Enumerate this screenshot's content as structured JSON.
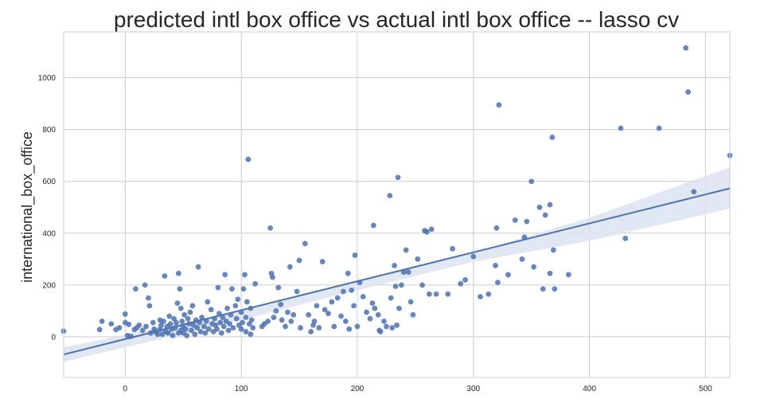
{
  "chart_data": {
    "type": "scatter",
    "title": "predicted intl box office vs actual intl box office -- lasso cv",
    "xlabel": "",
    "ylabel": "international_box_office",
    "xlim": [
      -53,
      521
    ],
    "ylim": [
      -157,
      1177
    ],
    "xticks": [
      0,
      100,
      200,
      300,
      400,
      500
    ],
    "yticks": [
      0,
      200,
      400,
      600,
      800,
      1000
    ],
    "grid": true,
    "point_color": "#4c72b0",
    "regression": {
      "line": [
        [
          -53,
          -68
        ],
        [
          521,
          573
        ]
      ],
      "ci_upper": [
        [
          -53,
          -40
        ],
        [
          100,
          100
        ],
        [
          200,
          210
        ],
        [
          300,
          325
        ],
        [
          400,
          460
        ],
        [
          521,
          655
        ]
      ],
      "ci_lower": [
        [
          -53,
          -96
        ],
        [
          100,
          65
        ],
        [
          200,
          180
        ],
        [
          300,
          290
        ],
        [
          400,
          370
        ],
        [
          521,
          495
        ]
      ],
      "line_color": "#4c72b0",
      "band_color": "#dce3f1"
    },
    "points": [
      [
        -53,
        22
      ],
      [
        -22,
        28
      ],
      [
        -20,
        60
      ],
      [
        -12,
        50
      ],
      [
        -8,
        28
      ],
      [
        -5,
        35
      ],
      [
        0,
        88
      ],
      [
        0,
        55
      ],
      [
        3,
        48
      ],
      [
        2,
        5
      ],
      [
        5,
        2
      ],
      [
        8,
        28
      ],
      [
        9,
        185
      ],
      [
        10,
        35
      ],
      [
        12,
        45
      ],
      [
        15,
        25
      ],
      [
        17,
        200
      ],
      [
        18,
        40
      ],
      [
        20,
        150
      ],
      [
        21,
        120
      ],
      [
        22,
        15
      ],
      [
        24,
        55
      ],
      [
        25,
        30
      ],
      [
        26,
        20
      ],
      [
        28,
        10
      ],
      [
        30,
        65
      ],
      [
        30,
        30
      ],
      [
        31,
        45
      ],
      [
        32,
        10
      ],
      [
        33,
        60
      ],
      [
        34,
        235
      ],
      [
        35,
        20
      ],
      [
        36,
        40
      ],
      [
        37,
        15
      ],
      [
        38,
        80
      ],
      [
        39,
        50
      ],
      [
        40,
        30
      ],
      [
        41,
        5
      ],
      [
        42,
        70
      ],
      [
        43,
        35
      ],
      [
        44,
        55
      ],
      [
        45,
        130
      ],
      [
        46,
        15
      ],
      [
        46,
        245
      ],
      [
        47,
        185
      ],
      [
        48,
        25
      ],
      [
        48,
        110
      ],
      [
        49,
        60
      ],
      [
        50,
        40
      ],
      [
        50,
        15
      ],
      [
        51,
        85
      ],
      [
        52,
        30
      ],
      [
        53,
        5
      ],
      [
        54,
        70
      ],
      [
        55,
        50
      ],
      [
        56,
        95
      ],
      [
        57,
        25
      ],
      [
        58,
        120
      ],
      [
        59,
        45
      ],
      [
        60,
        10
      ],
      [
        61,
        65
      ],
      [
        62,
        35
      ],
      [
        63,
        270
      ],
      [
        64,
        55
      ],
      [
        65,
        20
      ],
      [
        66,
        75
      ],
      [
        68,
        40
      ],
      [
        69,
        15
      ],
      [
        70,
        60
      ],
      [
        71,
        135
      ],
      [
        72,
        30
      ],
      [
        74,
        105
      ],
      [
        75,
        50
      ],
      [
        76,
        20
      ],
      [
        77,
        70
      ],
      [
        78,
        45
      ],
      [
        79,
        30
      ],
      [
        80,
        190
      ],
      [
        81,
        90
      ],
      [
        82,
        55
      ],
      [
        83,
        15
      ],
      [
        84,
        75
      ],
      [
        85,
        40
      ],
      [
        86,
        240
      ],
      [
        87,
        60
      ],
      [
        88,
        110
      ],
      [
        89,
        25
      ],
      [
        90,
        50
      ],
      [
        91,
        85
      ],
      [
        92,
        185
      ],
      [
        93,
        35
      ],
      [
        95,
        120
      ],
      [
        96,
        70
      ],
      [
        97,
        145
      ],
      [
        98,
        45
      ],
      [
        100,
        95
      ],
      [
        100,
        30
      ],
      [
        101,
        55
      ],
      [
        102,
        185
      ],
      [
        103,
        240
      ],
      [
        104,
        75
      ],
      [
        104,
        20
      ],
      [
        105,
        135
      ],
      [
        106,
        685
      ],
      [
        107,
        50
      ],
      [
        108,
        110
      ],
      [
        108,
        10
      ],
      [
        109,
        65
      ],
      [
        110,
        35
      ],
      [
        112,
        205
      ],
      [
        118,
        40
      ],
      [
        120,
        50
      ],
      [
        123,
        60
      ],
      [
        125,
        420
      ],
      [
        126,
        245
      ],
      [
        127,
        230
      ],
      [
        128,
        75
      ],
      [
        130,
        100
      ],
      [
        132,
        190
      ],
      [
        134,
        125
      ],
      [
        135,
        65
      ],
      [
        138,
        40
      ],
      [
        140,
        95
      ],
      [
        142,
        270
      ],
      [
        143,
        60
      ],
      [
        145,
        85
      ],
      [
        148,
        175
      ],
      [
        150,
        295
      ],
      [
        151,
        35
      ],
      [
        155,
        360
      ],
      [
        158,
        85
      ],
      [
        160,
        20
      ],
      [
        162,
        45
      ],
      [
        163,
        60
      ],
      [
        165,
        120
      ],
      [
        167,
        35
      ],
      [
        170,
        290
      ],
      [
        172,
        105
      ],
      [
        175,
        90
      ],
      [
        178,
        135
      ],
      [
        180,
        40
      ],
      [
        183,
        150
      ],
      [
        186,
        80
      ],
      [
        188,
        175
      ],
      [
        190,
        60
      ],
      [
        192,
        245
      ],
      [
        193,
        30
      ],
      [
        195,
        180
      ],
      [
        197,
        120
      ],
      [
        198,
        315
      ],
      [
        200,
        40
      ],
      [
        202,
        210
      ],
      [
        205,
        155
      ],
      [
        208,
        95
      ],
      [
        211,
        70
      ],
      [
        213,
        130
      ],
      [
        214,
        430
      ],
      [
        215,
        110
      ],
      [
        218,
        85
      ],
      [
        219,
        25
      ],
      [
        220,
        20
      ],
      [
        223,
        60
      ],
      [
        225,
        40
      ],
      [
        228,
        545
      ],
      [
        229,
        150
      ],
      [
        230,
        35
      ],
      [
        232,
        275
      ],
      [
        233,
        195
      ],
      [
        234,
        45
      ],
      [
        235,
        615
      ],
      [
        236,
        110
      ],
      [
        238,
        200
      ],
      [
        240,
        250
      ],
      [
        242,
        335
      ],
      [
        244,
        250
      ],
      [
        246,
        135
      ],
      [
        248,
        85
      ],
      [
        252,
        300
      ],
      [
        256,
        200
      ],
      [
        258,
        410
      ],
      [
        260,
        405
      ],
      [
        262,
        165
      ],
      [
        264,
        415
      ],
      [
        268,
        165
      ],
      [
        278,
        165
      ],
      [
        282,
        340
      ],
      [
        289,
        205
      ],
      [
        293,
        220
      ],
      [
        300,
        310
      ],
      [
        306,
        155
      ],
      [
        313,
        165
      ],
      [
        319,
        275
      ],
      [
        320,
        420
      ],
      [
        321,
        210
      ],
      [
        322,
        895
      ],
      [
        330,
        240
      ],
      [
        336,
        450
      ],
      [
        342,
        300
      ],
      [
        344,
        385
      ],
      [
        346,
        445
      ],
      [
        350,
        600
      ],
      [
        352,
        270
      ],
      [
        357,
        500
      ],
      [
        360,
        185
      ],
      [
        362,
        470
      ],
      [
        366,
        245
      ],
      [
        366,
        510
      ],
      [
        368,
        770
      ],
      [
        369,
        335
      ],
      [
        370,
        185
      ],
      [
        382,
        240
      ],
      [
        427,
        805
      ],
      [
        431,
        380
      ],
      [
        460,
        805
      ],
      [
        483,
        1115
      ],
      [
        485,
        945
      ],
      [
        490,
        560
      ],
      [
        521,
        700
      ]
    ]
  }
}
